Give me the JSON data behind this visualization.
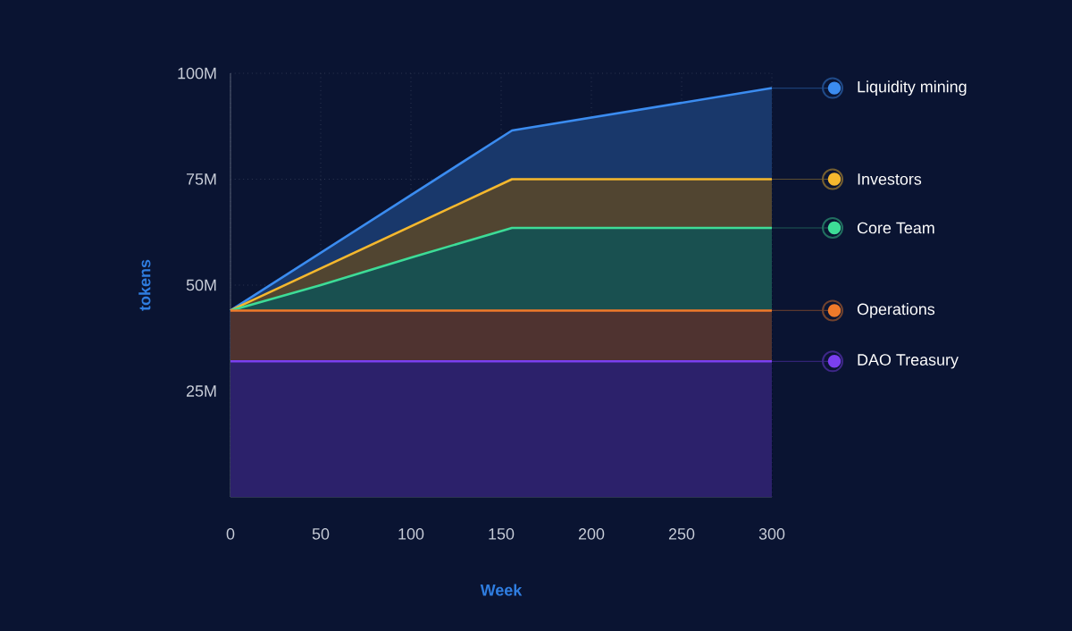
{
  "chart_data": {
    "type": "area",
    "xlabel": "Week",
    "ylabel": "tokens",
    "xlim": [
      0,
      300
    ],
    "xticks": [
      0,
      50,
      100,
      150,
      200,
      250,
      300
    ],
    "ylim": [
      0,
      100
    ],
    "yticks": [
      {
        "value": 25,
        "label": "25M"
      },
      {
        "value": 50,
        "label": "50M"
      },
      {
        "value": 75,
        "label": "75M"
      },
      {
        "value": 100,
        "label": "100M"
      }
    ],
    "grid": true,
    "legend": "right",
    "marker": "none",
    "line_style": "solid",
    "series": [
      {
        "name": "Liquidity mining",
        "color": "#3b8cf0",
        "x": [
          0,
          156,
          300
        ],
        "values": [
          44,
          86.5,
          96.5
        ]
      },
      {
        "name": "Investors",
        "color": "#f5b82e",
        "x": [
          0,
          156,
          300
        ],
        "values": [
          44,
          75,
          75
        ]
      },
      {
        "name": "Core Team",
        "color": "#3ddc97",
        "x": [
          0,
          50,
          100,
          156,
          300
        ],
        "values": [
          44,
          50,
          56.5,
          63.5,
          63.5
        ]
      },
      {
        "name": "Operations",
        "color": "#f07a2a",
        "x": [
          0,
          300
        ],
        "values": [
          44,
          44
        ]
      },
      {
        "name": "DAO Treasury",
        "color": "#7b3ff0",
        "x": [
          0,
          300
        ],
        "values": [
          32,
          32
        ]
      }
    ]
  }
}
